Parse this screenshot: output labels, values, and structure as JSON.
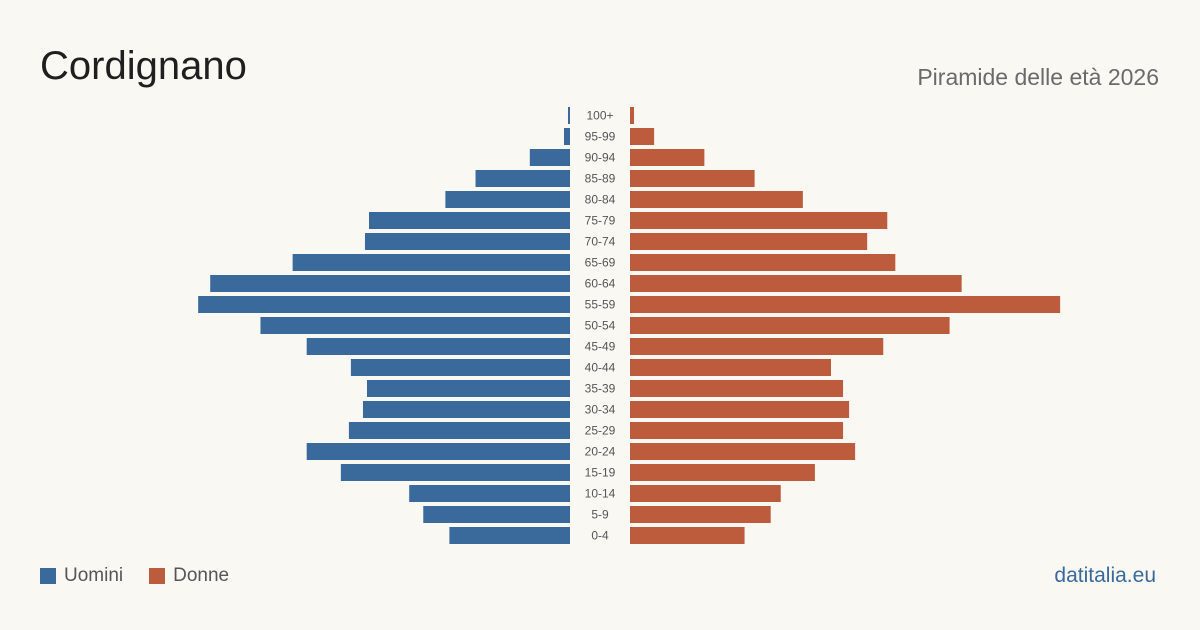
{
  "title": "Cordignano",
  "subtitle": "Piramide delle età 2026",
  "source": "datitalia.eu",
  "colors": {
    "men": "#3a6a9c",
    "women": "#bc5c3c"
  },
  "legend": {
    "men": "Uomini",
    "women": "Donne"
  },
  "chart_data": {
    "type": "bar",
    "orientation": "horizontal",
    "categories": [
      "100+",
      "95-99",
      "90-94",
      "85-89",
      "80-84",
      "75-79",
      "70-74",
      "65-69",
      "60-64",
      "55-59",
      "50-54",
      "45-49",
      "40-44",
      "35-39",
      "30-34",
      "25-29",
      "20-24",
      "15-19",
      "10-14",
      "5-9",
      "0-4"
    ],
    "series": [
      {
        "name": "Uomini",
        "values": [
          1,
          3,
          20,
          47,
          62,
          100,
          102,
          138,
          179,
          185,
          154,
          131,
          109,
          101,
          103,
          110,
          131,
          114,
          80,
          73,
          60
        ]
      },
      {
        "name": "Donne",
        "values": [
          2,
          12,
          37,
          62,
          86,
          128,
          118,
          132,
          165,
          214,
          159,
          126,
          100,
          106,
          109,
          106,
          112,
          92,
          75,
          70,
          57
        ]
      }
    ]
  }
}
